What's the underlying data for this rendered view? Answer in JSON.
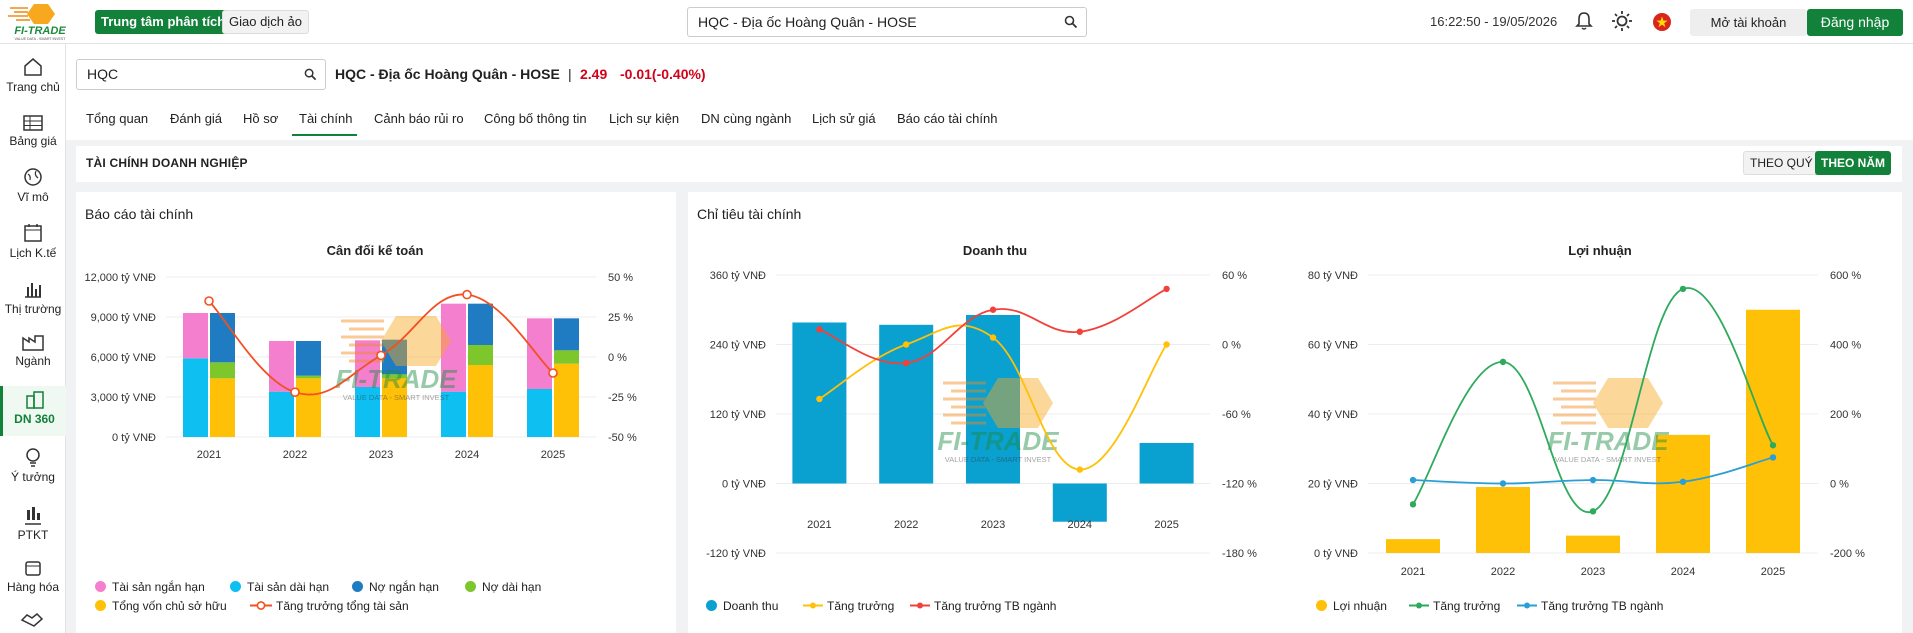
{
  "header": {
    "logo_text": "FI-TRADE",
    "logo_tagline": "VALUE DATA - SMART INVEST",
    "btn_analysis": "Trung tâm phân tích",
    "btn_virtual": "Giao dịch ảo",
    "search_value": "HQC - Địa ốc Hoàng Quân - HOSE",
    "datetime": "16:22:50 - 19/05/2026",
    "btn_open_account": "Mở tài khoản",
    "btn_login": "Đăng nhập"
  },
  "sidebar": {
    "items": [
      {
        "label": "Trang chủ",
        "icon": "home-icon"
      },
      {
        "label": "Bảng giá",
        "icon": "table-icon"
      },
      {
        "label": "Vĩ mô",
        "icon": "globe-icon"
      },
      {
        "label": "Lịch K.tế",
        "icon": "calendar-icon"
      },
      {
        "label": "Thị trường",
        "icon": "bar-chart-icon"
      },
      {
        "label": "Ngành",
        "icon": "factory-icon"
      },
      {
        "label": "DN 360",
        "icon": "building-icon"
      },
      {
        "label": "Ý tưởng",
        "icon": "lightbulb-icon"
      },
      {
        "label": "PTKT",
        "icon": "candlestick-icon"
      },
      {
        "label": "Hàng hóa",
        "icon": "box-icon"
      }
    ]
  },
  "stock": {
    "search_value": "HQC",
    "title": "HQC - Địa ốc Hoàng Quân - HOSE",
    "separator": "|",
    "price": "2.49",
    "change": "-0.01(-0.40%)"
  },
  "tabs": [
    "Tổng quan",
    "Đánh giá",
    "Hồ sơ",
    "Tài chính",
    "Cảnh báo rủi ro",
    "Công bố thông tin",
    "Lịch sự kiện",
    "DN cùng ngành",
    "Lịch sử giá",
    "Báo cáo tài chính"
  ],
  "active_tab": "Tài chính",
  "section": {
    "title": "TÀI CHÍNH DOANH NGHIỆP",
    "btn_quarter": "THEO QUÝ",
    "btn_year": "THEO NĂM"
  },
  "panels": {
    "left_title": "Báo cáo tài chính",
    "right_title": "Chỉ tiêu tài chính"
  },
  "colors": {
    "brand_green": "#12813a",
    "down_red": "#d0021b",
    "pink": "#f57fcf",
    "cyan": "#0ebff2",
    "navy": "#1f7cc2",
    "lime": "#7dc62b",
    "amber": "#ffc107",
    "orange_red": "#f25022",
    "teal_blue": "#0aa0d0",
    "green_line": "#2eaa5c",
    "blue_line": "#2a9fd6"
  },
  "chart_data": [
    {
      "type": "bar",
      "title": "Cân đối kế toán",
      "categories": [
        "2021",
        "2022",
        "2023",
        "2024",
        "2025"
      ],
      "y_ticks": [
        "12,000 tỷ VNĐ",
        "9,000 tỷ VNĐ",
        "6,000 tỷ VNĐ",
        "3,000 tỷ VNĐ",
        "0 tỷ VNĐ"
      ],
      "y2_ticks": [
        "50 %",
        "25 %",
        "0 %",
        "-25 %",
        "-50 %"
      ],
      "ylim": [
        0,
        12000
      ],
      "y2lim": [
        -50,
        50
      ],
      "series": [
        {
          "name": "Tài sản ngắn hạn",
          "stack": "assets",
          "values": [
            3400,
            3800,
            3500,
            6600,
            5300
          ]
        },
        {
          "name": "Tài sản dài hạn",
          "stack": "assets",
          "values": [
            5900,
            3400,
            3750,
            3400,
            3600
          ]
        },
        {
          "name": "Nợ ngắn hạn",
          "stack": "liab",
          "values": [
            3700,
            2600,
            2600,
            3100,
            2400
          ]
        },
        {
          "name": "Nợ dài hạn",
          "stack": "liab",
          "values": [
            1200,
            200,
            300,
            1500,
            1000
          ]
        },
        {
          "name": "Tổng vốn chủ sở hữu",
          "stack": "liab",
          "values": [
            4400,
            4400,
            4400,
            5400,
            5500
          ]
        }
      ],
      "lines": [
        {
          "name": "Tăng trưởng tổng tài sản",
          "axis": "y2",
          "values": [
            35,
            -22,
            1,
            39,
            -10
          ]
        }
      ]
    },
    {
      "type": "bar",
      "title": "Doanh thu",
      "categories": [
        "2021",
        "2022",
        "2023",
        "2024",
        "2025"
      ],
      "y_ticks": [
        "360 tỷ VNĐ",
        "240 tỷ VNĐ",
        "120 tỷ VNĐ",
        "0 tỷ VNĐ",
        "-120 tỷ VNĐ"
      ],
      "y2_ticks": [
        "60 %",
        "0 %",
        "-60 %",
        "-120 %",
        "-180 %"
      ],
      "ylim": [
        -120,
        360
      ],
      "y2lim": [
        -180,
        60
      ],
      "series": [
        {
          "name": "Doanh thu",
          "values": [
            278,
            274,
            291,
            -66,
            70
          ]
        }
      ],
      "lines": [
        {
          "name": "Tăng trưởng",
          "axis": "y2",
          "values": [
            -47,
            0,
            6,
            -108,
            0
          ]
        },
        {
          "name": "Tăng trưởng TB ngành",
          "axis": "y2",
          "values": [
            13,
            -16,
            30,
            11,
            48
          ]
        }
      ]
    },
    {
      "type": "bar",
      "title": "Lợi nhuận",
      "categories": [
        "2021",
        "2022",
        "2023",
        "2024",
        "2025"
      ],
      "y_ticks": [
        "80 tỷ VNĐ",
        "60 tỷ VNĐ",
        "40 tỷ VNĐ",
        "20 tỷ VNĐ",
        "0 tỷ VNĐ"
      ],
      "y2_ticks": [
        "600 %",
        "400 %",
        "200 %",
        "0 %",
        "-200 %"
      ],
      "ylim": [
        0,
        80
      ],
      "y2lim": [
        -200,
        600
      ],
      "series": [
        {
          "name": "Lợi nhuận",
          "values": [
            4,
            19,
            5,
            34,
            70
          ]
        }
      ],
      "lines": [
        {
          "name": "Tăng trưởng",
          "axis": "y2",
          "values": [
            -60,
            350,
            -80,
            560,
            110
          ]
        },
        {
          "name": "Tăng trưởng TB ngành",
          "axis": "y2",
          "values": [
            10,
            0,
            10,
            5,
            75
          ]
        }
      ]
    }
  ]
}
